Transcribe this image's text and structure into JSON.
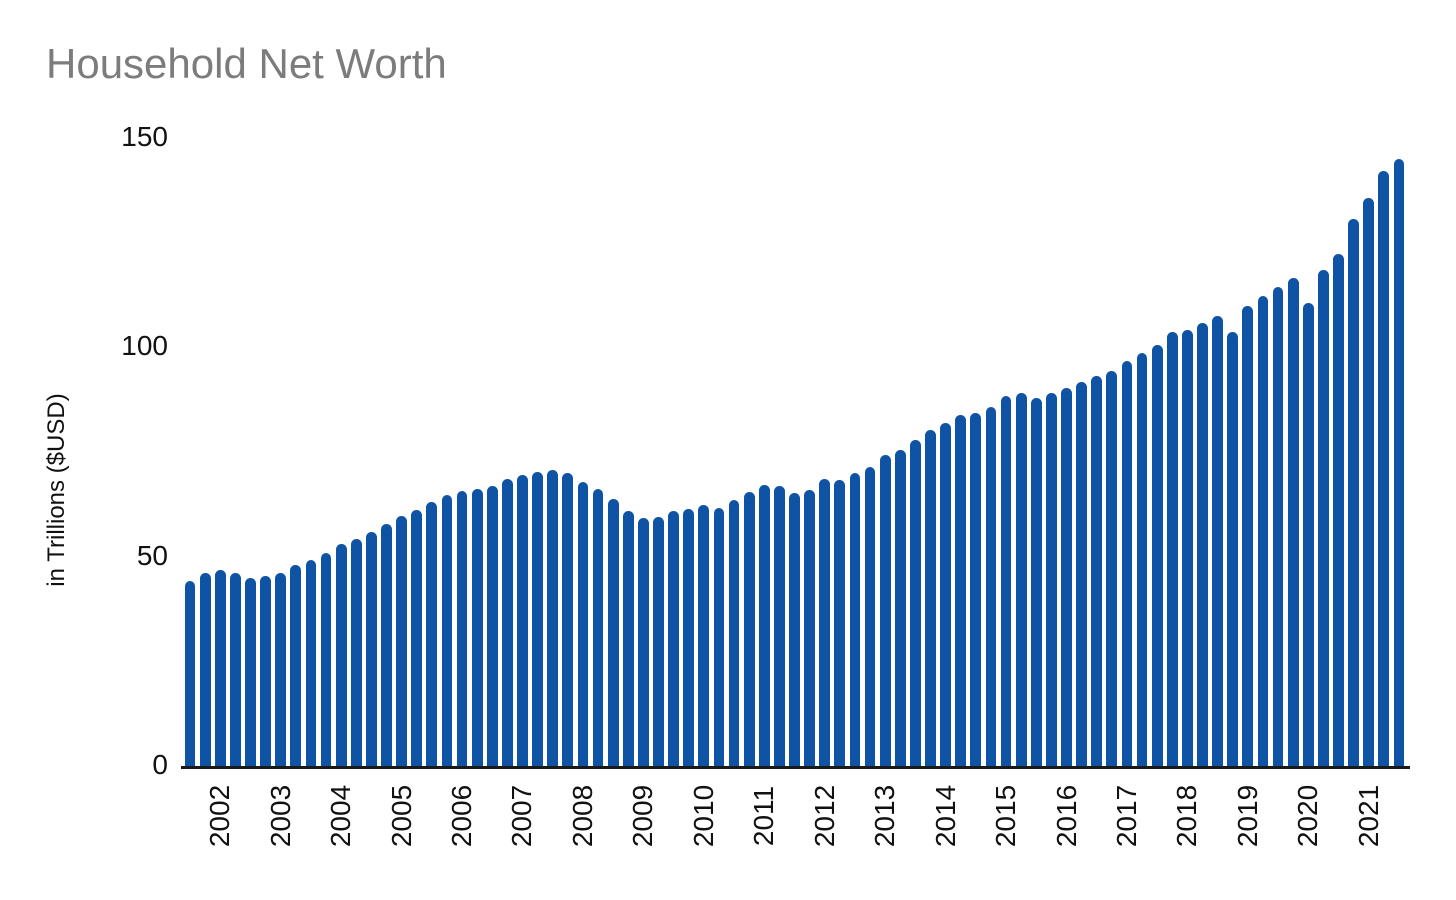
{
  "title": "Household Net Worth",
  "y_axis_label": "in Trillions ($USD)",
  "colors": {
    "bar": "#0F54A4",
    "title_text": "#7c7c7c",
    "tick_text": "#111111",
    "axis_line": "#1a1a1a",
    "background": "#ffffff"
  },
  "chart_data": {
    "type": "bar",
    "title": "Household Net Worth",
    "xlabel": "",
    "ylabel": "in Trillions ($USD)",
    "unit": "trillions of USD",
    "frequency": "quarterly",
    "grid": "off",
    "legend": "none",
    "ylim": [
      0,
      150
    ],
    "y_ticks": [
      0,
      50,
      100,
      150
    ],
    "x_tick_labels": [
      "2002",
      "2003",
      "2004",
      "2005",
      "2006",
      "2007",
      "2008",
      "2009",
      "2010",
      "2011",
      "2012",
      "2013",
      "2014",
      "2015",
      "2016",
      "2017",
      "2018",
      "2019",
      "2020",
      "2021"
    ],
    "quarters": [
      "2001Q3",
      "2001Q4",
      "2002Q1",
      "2002Q2",
      "2002Q3",
      "2002Q4",
      "2003Q1",
      "2003Q2",
      "2003Q3",
      "2003Q4",
      "2004Q1",
      "2004Q2",
      "2004Q3",
      "2004Q4",
      "2005Q1",
      "2005Q2",
      "2005Q3",
      "2005Q4",
      "2006Q1",
      "2006Q2",
      "2006Q3",
      "2006Q4",
      "2007Q1",
      "2007Q2",
      "2007Q3",
      "2007Q4",
      "2008Q1",
      "2008Q2",
      "2008Q3",
      "2008Q4",
      "2009Q1",
      "2009Q2",
      "2009Q3",
      "2009Q4",
      "2010Q1",
      "2010Q2",
      "2010Q3",
      "2010Q4",
      "2011Q1",
      "2011Q2",
      "2011Q3",
      "2011Q4",
      "2012Q1",
      "2012Q2",
      "2012Q3",
      "2012Q4",
      "2013Q1",
      "2013Q2",
      "2013Q3",
      "2013Q4",
      "2014Q1",
      "2014Q2",
      "2014Q3",
      "2014Q4",
      "2015Q1",
      "2015Q2",
      "2015Q3",
      "2015Q4",
      "2016Q1",
      "2016Q2",
      "2016Q3",
      "2016Q4",
      "2017Q1",
      "2017Q2",
      "2017Q3",
      "2017Q4",
      "2018Q1",
      "2018Q2",
      "2018Q3",
      "2018Q4",
      "2019Q1",
      "2019Q2",
      "2019Q3",
      "2019Q4",
      "2020Q1",
      "2020Q2",
      "2020Q3",
      "2020Q4",
      "2021Q1",
      "2021Q2",
      "2021Q3"
    ],
    "values": [
      44.3,
      46.0,
      46.8,
      46.0,
      44.9,
      45.4,
      46.1,
      48.0,
      49.3,
      50.8,
      53.0,
      54.2,
      55.9,
      57.8,
      59.7,
      61.2,
      63.0,
      64.7,
      65.8,
      66.2,
      66.8,
      68.6,
      69.5,
      70.3,
      70.8,
      70.1,
      67.9,
      66.2,
      63.8,
      61.0,
      59.2,
      59.4,
      61.0,
      61.4,
      62.4,
      61.7,
      63.5,
      65.4,
      67.0,
      66.8,
      65.1,
      66.0,
      68.6,
      68.3,
      69.9,
      71.3,
      74.2,
      75.4,
      77.8,
      80.2,
      81.9,
      83.8,
      84.4,
      85.7,
      88.3,
      89.0,
      87.8,
      89.2,
      90.4,
      91.8,
      93.2,
      94.4,
      96.8,
      98.6,
      100.6,
      103.6,
      104.2,
      105.7,
      107.5,
      103.7,
      109.9,
      112.3,
      114.3,
      116.5,
      110.5,
      118.5,
      122.3,
      130.7,
      135.6,
      142.1,
      144.9
    ]
  }
}
